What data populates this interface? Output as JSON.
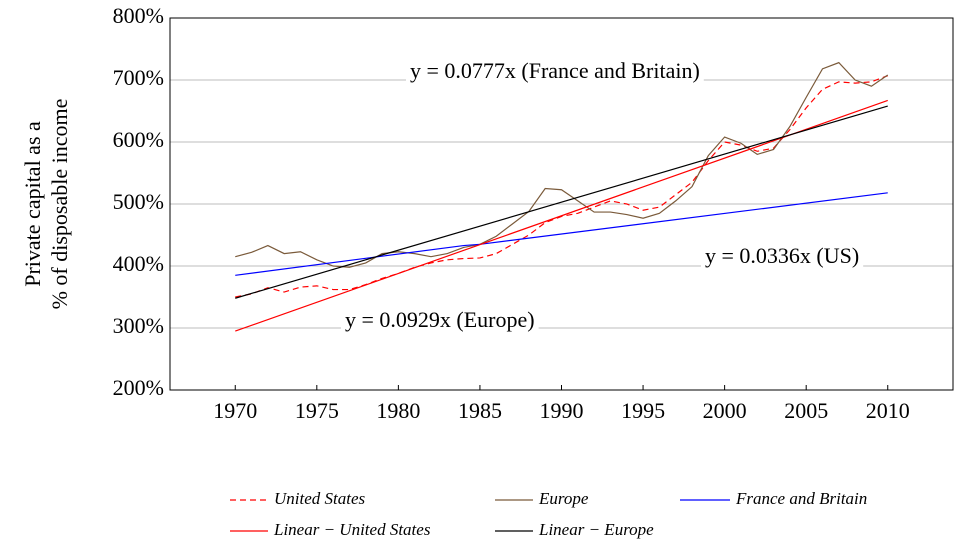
{
  "chart_data": {
    "type": "line",
    "y_label": [
      "Private capital as a",
      "% of disposable income"
    ],
    "xlim": [
      1966,
      2014
    ],
    "xticks": [
      1970,
      1975,
      1980,
      1985,
      1990,
      1995,
      2000,
      2005,
      2010
    ],
    "ylim": [
      200,
      800
    ],
    "yticks": [
      {
        "value": 200,
        "label": "200%"
      },
      {
        "value": 300,
        "label": "300%"
      },
      {
        "value": 400,
        "label": "400%"
      },
      {
        "value": 500,
        "label": "500%"
      },
      {
        "value": 600,
        "label": "600%"
      },
      {
        "value": 700,
        "label": "700%"
      },
      {
        "value": 800,
        "label": "800%"
      }
    ],
    "grid": true,
    "legend": "bottom",
    "series": [
      {
        "name": "United States",
        "color": "#ff0000",
        "style": "dashed",
        "x": [
          1970,
          1971,
          1972,
          1973,
          1974,
          1975,
          1976,
          1977,
          1978,
          1979,
          1980,
          1981,
          1982,
          1983,
          1984,
          1985,
          1986,
          1987,
          1988,
          1989,
          1990,
          1991,
          1992,
          1993,
          1994,
          1995,
          1996,
          1997,
          1998,
          1999,
          2000,
          2001,
          2002,
          2003,
          2004,
          2005,
          2006,
          2007,
          2008,
          2009,
          2010
        ],
        "values": [
          350,
          355,
          365,
          358,
          366,
          368,
          362,
          362,
          370,
          380,
          388,
          398,
          405,
          410,
          412,
          413,
          420,
          435,
          450,
          470,
          480,
          485,
          495,
          505,
          500,
          490,
          495,
          515,
          535,
          570,
          600,
          595,
          585,
          590,
          620,
          655,
          685,
          697,
          695,
          697,
          707
        ]
      },
      {
        "name": "Europe",
        "color": "#7a5a3a",
        "style": "solid",
        "x": [
          1970,
          1971,
          1972,
          1973,
          1974,
          1975,
          1976,
          1977,
          1978,
          1979,
          1980,
          1981,
          1982,
          1983,
          1984,
          1985,
          1986,
          1987,
          1988,
          1989,
          1990,
          1991,
          1992,
          1993,
          1994,
          1995,
          1996,
          1997,
          1998,
          1999,
          2000,
          2001,
          2002,
          2003,
          2004,
          2005,
          2006,
          2007,
          2008,
          2009,
          2010
        ],
        "values": [
          415,
          422,
          433,
          420,
          423,
          410,
          400,
          398,
          405,
          420,
          423,
          420,
          415,
          420,
          430,
          435,
          448,
          468,
          488,
          525,
          523,
          505,
          487,
          487,
          483,
          477,
          485,
          505,
          528,
          578,
          608,
          598,
          580,
          588,
          625,
          672,
          718,
          728,
          700,
          690,
          708
        ]
      },
      {
        "name": "France and Britain",
        "color": "#0000ff",
        "style": "solid",
        "x": [
          1970,
          1984,
          1985,
          2010
        ],
        "values": [
          385,
          433,
          435,
          518
        ]
      },
      {
        "name": "Linear − United States",
        "color": "#ff0000",
        "style": "solid",
        "x": [
          1970,
          2010
        ],
        "values": [
          295,
          667
        ]
      },
      {
        "name": "Linear − Europe",
        "color": "#000000",
        "style": "solid",
        "x": [
          1970,
          2010
        ],
        "values": [
          348,
          658
        ]
      }
    ],
    "annotations": [
      "y = 0.0777x (France and Britain)",
      "y = 0.0336x (US)",
      "y = 0.0929x (Europe)"
    ]
  }
}
